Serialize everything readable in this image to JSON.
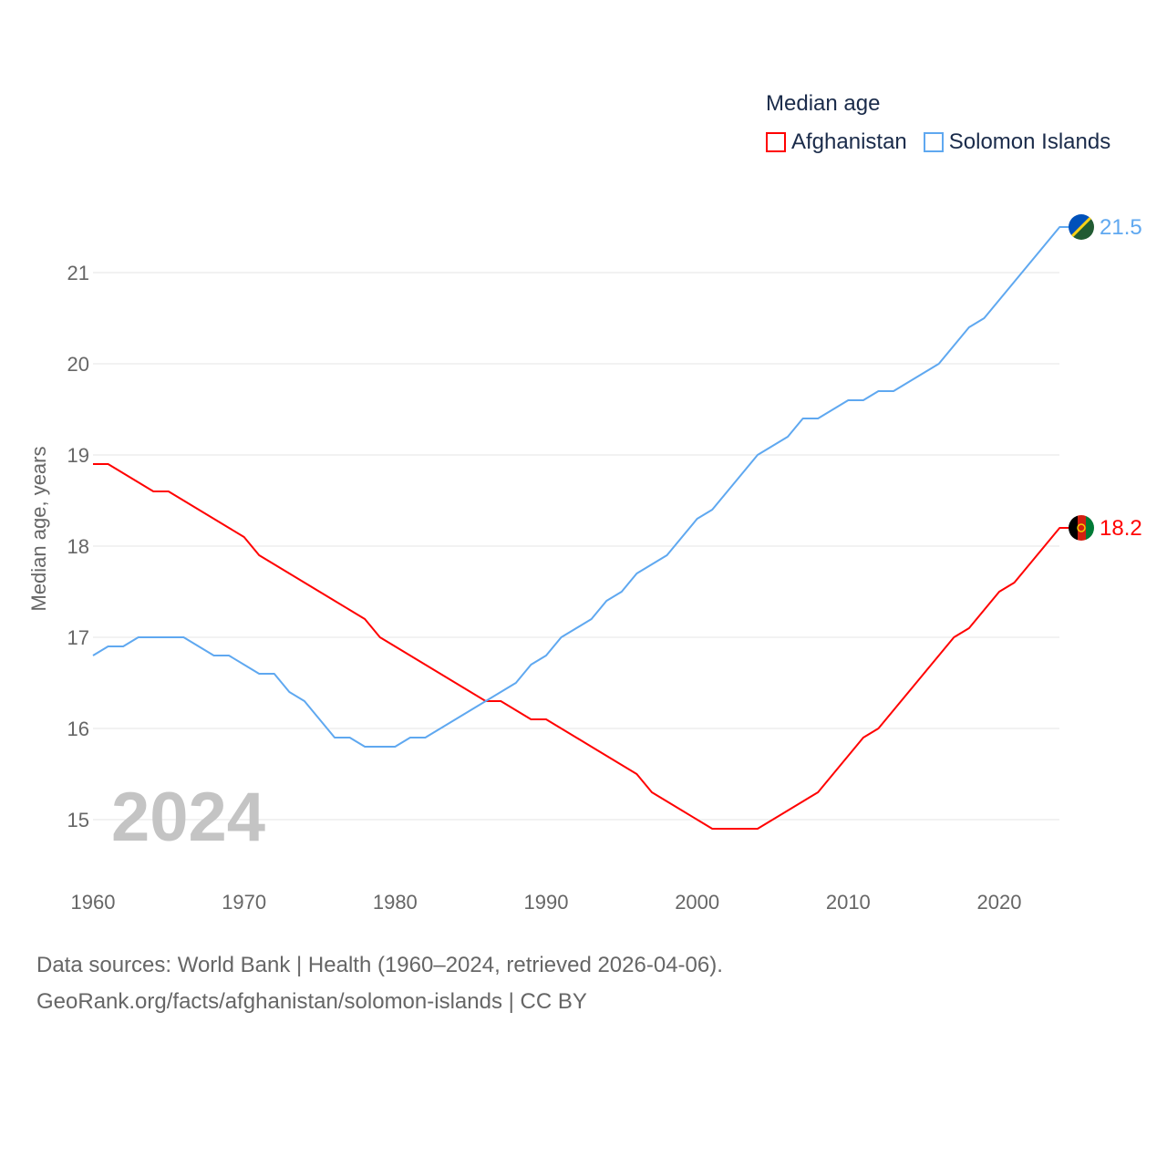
{
  "chart_data": {
    "type": "line",
    "title": "Median age",
    "xlabel": "",
    "ylabel": "Median age, years",
    "xlim": [
      1960,
      2024
    ],
    "ylim": [
      14.4,
      21.7
    ],
    "xticks": [
      1960,
      1970,
      1980,
      1990,
      2000,
      2010,
      2020
    ],
    "yticks": [
      15,
      16,
      17,
      18,
      19,
      20,
      21
    ],
    "grid": true,
    "legend_position": "top-right",
    "year_label": "2024",
    "x": [
      1960,
      1961,
      1962,
      1963,
      1964,
      1965,
      1966,
      1967,
      1968,
      1969,
      1970,
      1971,
      1972,
      1973,
      1974,
      1975,
      1976,
      1977,
      1978,
      1979,
      1980,
      1981,
      1982,
      1983,
      1984,
      1985,
      1986,
      1987,
      1988,
      1989,
      1990,
      1991,
      1992,
      1993,
      1994,
      1995,
      1996,
      1997,
      1998,
      1999,
      2000,
      2001,
      2002,
      2003,
      2004,
      2005,
      2006,
      2007,
      2008,
      2009,
      2010,
      2011,
      2012,
      2013,
      2014,
      2015,
      2016,
      2017,
      2018,
      2019,
      2020,
      2021,
      2022,
      2023,
      2024
    ],
    "series": [
      {
        "name": "Afghanistan",
        "color": "#ff0000",
        "end_label": "18.2",
        "values": [
          18.9,
          18.9,
          18.8,
          18.7,
          18.6,
          18.6,
          18.5,
          18.4,
          18.3,
          18.2,
          18.1,
          17.9,
          17.8,
          17.7,
          17.6,
          17.5,
          17.4,
          17.3,
          17.2,
          17.0,
          16.9,
          16.8,
          16.7,
          16.6,
          16.5,
          16.4,
          16.3,
          16.3,
          16.2,
          16.1,
          16.1,
          16.0,
          15.9,
          15.8,
          15.7,
          15.6,
          15.5,
          15.3,
          15.2,
          15.1,
          15.0,
          14.9,
          14.9,
          14.9,
          14.9,
          15.0,
          15.1,
          15.2,
          15.3,
          15.5,
          15.7,
          15.9,
          16.0,
          16.2,
          16.4,
          16.6,
          16.8,
          17.0,
          17.1,
          17.3,
          17.5,
          17.6,
          17.8,
          18.0,
          18.2
        ]
      },
      {
        "name": "Solomon Islands",
        "color": "#5fa8f0",
        "end_label": "21.5",
        "values": [
          16.8,
          16.9,
          16.9,
          17.0,
          17.0,
          17.0,
          17.0,
          16.9,
          16.8,
          16.8,
          16.7,
          16.6,
          16.6,
          16.4,
          16.3,
          16.1,
          15.9,
          15.9,
          15.8,
          15.8,
          15.8,
          15.9,
          15.9,
          16.0,
          16.1,
          16.2,
          16.3,
          16.4,
          16.5,
          16.7,
          16.8,
          17.0,
          17.1,
          17.2,
          17.4,
          17.5,
          17.7,
          17.8,
          17.9,
          18.1,
          18.3,
          18.4,
          18.6,
          18.8,
          19.0,
          19.1,
          19.2,
          19.4,
          19.4,
          19.5,
          19.6,
          19.6,
          19.7,
          19.7,
          19.8,
          19.9,
          20.0,
          20.2,
          20.4,
          20.5,
          20.7,
          20.9,
          21.1,
          21.3,
          21.5
        ]
      }
    ]
  },
  "source_line1": "Data sources: World Bank | Health (1960–2024, retrieved 2026-04-06).",
  "source_line2": "GeoRank.org/facts/afghanistan/solomon-islands | CC BY"
}
